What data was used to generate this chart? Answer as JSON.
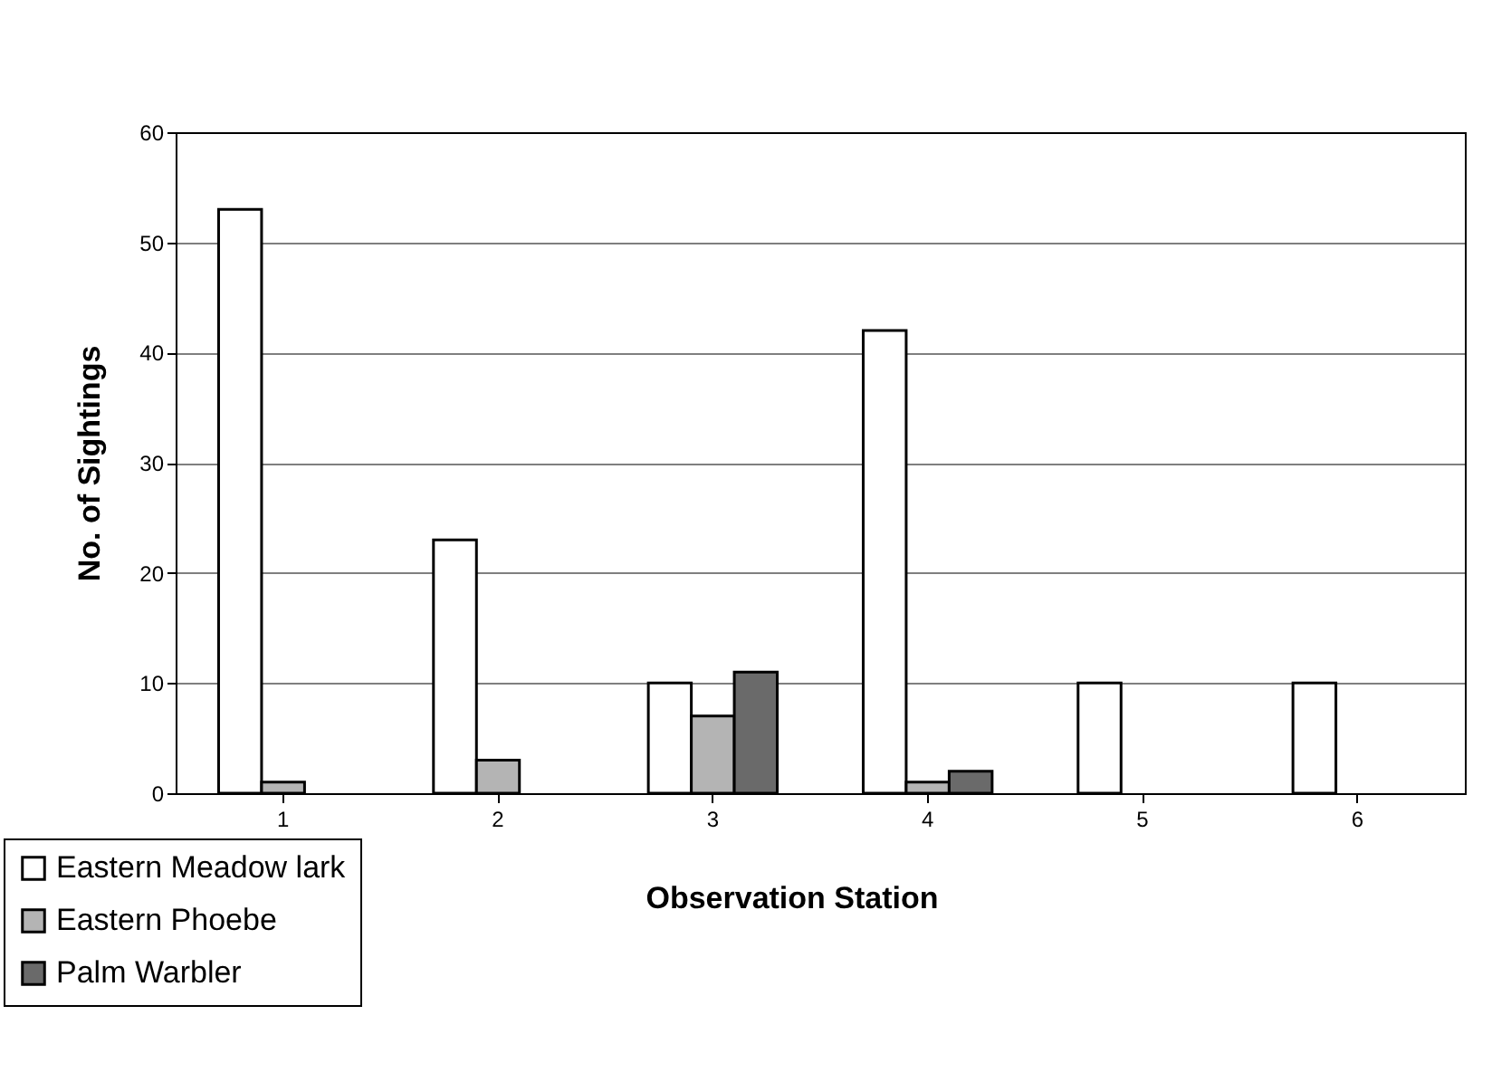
{
  "chart_data": {
    "type": "bar",
    "xlabel": "Observation Station",
    "ylabel": "No. of Sightings",
    "categories": [
      "1",
      "2",
      "3",
      "4",
      "5",
      "6"
    ],
    "series": [
      {
        "name": "Eastern Meadow lark",
        "color": "#ffffff",
        "values": [
          53,
          23,
          10,
          42,
          10,
          10
        ]
      },
      {
        "name": "Eastern Phoebe",
        "color": "#b4b4b4",
        "values": [
          1,
          3,
          7,
          1,
          0,
          0
        ]
      },
      {
        "name": "Palm Warbler",
        "color": "#6a6a6a",
        "values": [
          0,
          0,
          11,
          2,
          0,
          0
        ]
      }
    ],
    "ylim": [
      0,
      60
    ],
    "yticks": [
      0,
      10,
      20,
      30,
      40,
      50,
      60
    ],
    "grid": "y",
    "legend": "bottom left"
  }
}
